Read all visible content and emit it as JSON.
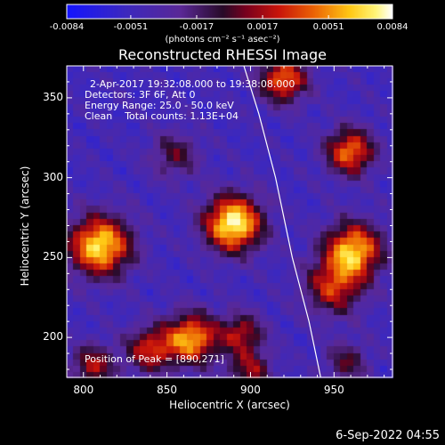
{
  "chart_data": {
    "type": "heatmap",
    "title": "Reconstructed RHESSI Image",
    "xlabel": "Heliocentric X (arcsec)",
    "ylabel": "Heliocentric Y (arcsec)",
    "xlim": [
      790,
      985
    ],
    "ylim": [
      175,
      370
    ],
    "xticks": [
      800,
      850,
      900,
      950
    ],
    "yticks": [
      200,
      250,
      300,
      350
    ],
    "colorbar": {
      "min": -0.0084,
      "max": 0.0084,
      "tick_values": [
        -0.0084,
        -0.0051,
        -0.0017,
        0.0017,
        0.0051,
        0.0084
      ],
      "tick_labels": [
        "-0.0084",
        "-0.0051",
        "-0.0017",
        "0.0017",
        "0.0051",
        "0.0084"
      ],
      "units_label": "(photons cm⁻² s⁻¹ asec⁻²)"
    },
    "annotations": {
      "time_range": "2-Apr-2017 19:32:08.000 to 19:38:08.000",
      "detectors": "Detectors: 3F 6F, Att 0",
      "energy_range": "Energy Range: 25.0 - 50.0 keV",
      "clean_counts": "Clean    Total counts: 1.13E+04",
      "peak_position": "Position of Peak = [890,271]"
    },
    "sources": [
      {
        "x": 890,
        "y": 272,
        "amplitude": 1.0,
        "sigma": 12
      },
      {
        "x": 810,
        "y": 258,
        "amplitude": 0.92,
        "sigma": 13
      },
      {
        "x": 962,
        "y": 255,
        "amplitude": 0.85,
        "sigma": 12
      },
      {
        "x": 950,
        "y": 232,
        "amplitude": 0.55,
        "sigma": 12
      },
      {
        "x": 960,
        "y": 317,
        "amplitude": 0.72,
        "sigma": 10
      },
      {
        "x": 920,
        "y": 362,
        "amplitude": 0.7,
        "sigma": 10
      },
      {
        "x": 865,
        "y": 200,
        "amplitude": 0.8,
        "sigma": 11
      },
      {
        "x": 840,
        "y": 193,
        "amplitude": 0.55,
        "sigma": 10
      },
      {
        "x": 895,
        "y": 203,
        "amplitude": 0.5,
        "sigma": 9
      },
      {
        "x": 806,
        "y": 183,
        "amplitude": 0.5,
        "sigma": 9
      },
      {
        "x": 900,
        "y": 180,
        "amplitude": 0.45,
        "sigma": 9
      },
      {
        "x": 855,
        "y": 315,
        "amplitude": 0.35,
        "sigma": 10
      },
      {
        "x": 958,
        "y": 185,
        "amplitude": 0.35,
        "sigma": 9
      }
    ],
    "limb_curve": {
      "x": [
        896,
        905,
        915,
        925,
        935,
        942
      ],
      "y": [
        370,
        340,
        300,
        250,
        210,
        175
      ]
    }
  },
  "timestamp": "6-Sep-2022 04:55"
}
